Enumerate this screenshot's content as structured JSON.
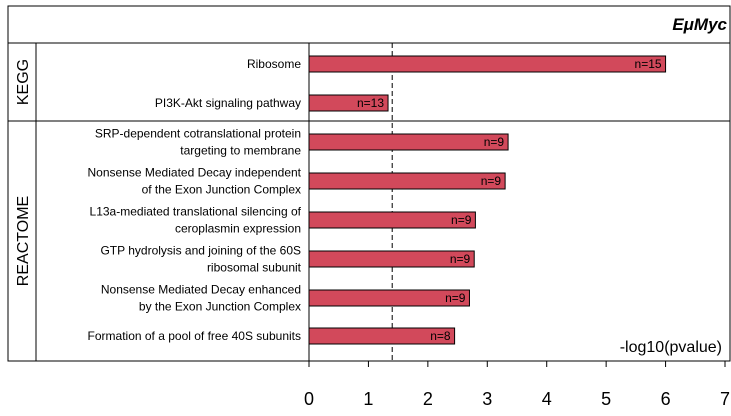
{
  "chart_data": {
    "type": "bar",
    "orientation": "horizontal",
    "title": "EμMyc",
    "xlabel": "-log10(pvalue)",
    "xlim": [
      0,
      7
    ],
    "x_ticks": [
      "0",
      "1",
      "2",
      "3",
      "4",
      "5",
      "6",
      "7"
    ],
    "threshold_x": 1.4,
    "bar_color": "#d2495b",
    "groups": [
      {
        "name": "KEGG",
        "bars": [
          {
            "label": [
              "Ribosome"
            ],
            "value": 6.0,
            "annotation": "n=15"
          },
          {
            "label": [
              "PI3K-Akt signaling pathway"
            ],
            "value": 1.33,
            "annotation": "n=13"
          }
        ]
      },
      {
        "name": "REACTOME",
        "bars": [
          {
            "label": [
              "SRP-dependent cotranslational protein",
              "targeting to membrane"
            ],
            "value": 3.35,
            "annotation": "n=9"
          },
          {
            "label": [
              "Nonsense Mediated Decay independent",
              "of the Exon Junction Complex"
            ],
            "value": 3.3,
            "annotation": "n=9"
          },
          {
            "label": [
              "L13a-mediated translational silencing of",
              "ceroplasmin expression"
            ],
            "value": 2.8,
            "annotation": "n=9"
          },
          {
            "label": [
              "GTP hydrolysis and joining of the 60S",
              "ribosomal subunit"
            ],
            "value": 2.78,
            "annotation": "n=9"
          },
          {
            "label": [
              "Nonsense Mediated Decay enhanced",
              "by the Exon Junction Complex"
            ],
            "value": 2.7,
            "annotation": "n=9"
          },
          {
            "label": [
              "Formation of a pool of free 40S subunits"
            ],
            "value": 2.45,
            "annotation": "n=8"
          }
        ]
      }
    ]
  }
}
